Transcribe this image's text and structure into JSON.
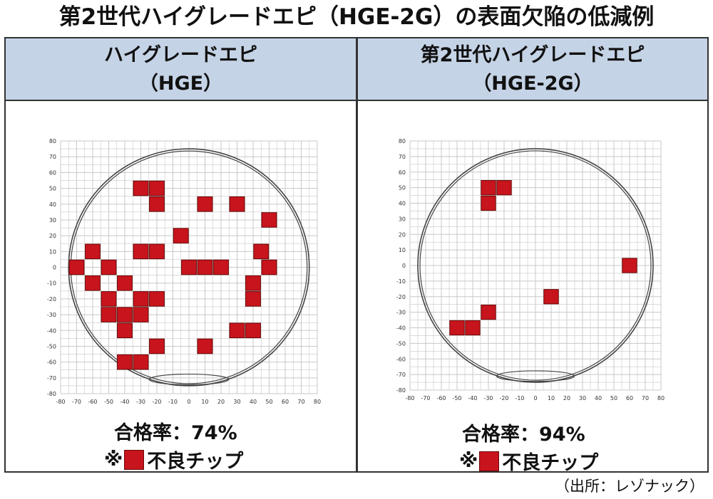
{
  "title": "第2世代ハイグレードエピ（HGE-2G）の表面欠陥の低減例",
  "panels": [
    {
      "title_line1": "ハイグレードエピ",
      "title_line2": "（HGE）",
      "yield_text": "合格率：74%",
      "legend_prefix": "※",
      "legend_label": "不良チップ"
    },
    {
      "title_line1": "第2世代ハイグレードエピ",
      "title_line2": "（HGE-2G）",
      "yield_text": "合格率：94%",
      "legend_prefix": "※",
      "legend_label": "不良チップ"
    }
  ],
  "source": "（出所：レゾナック）",
  "colors": {
    "defect": "#c8141c",
    "defect_border": "#6a0a0a",
    "header_bg": "#c5d3e6",
    "grid": "#c8c8c8",
    "circle": "#444444"
  },
  "chart_data": [
    {
      "type": "wafer-map",
      "xlim": [
        -80,
        80
      ],
      "ylim": [
        -80,
        80
      ],
      "x_ticks": [
        -80,
        -70,
        -60,
        -50,
        -40,
        -30,
        -20,
        -10,
        0,
        10,
        20,
        30,
        40,
        50,
        60,
        70,
        80
      ],
      "y_ticks": [
        80,
        70,
        60,
        50,
        40,
        30,
        20,
        10,
        0,
        -10,
        -20,
        -30,
        -40,
        -50,
        -60,
        -70,
        -80
      ],
      "grid": true,
      "defect_cells": [
        [
          -30,
          50
        ],
        [
          -20,
          50
        ],
        [
          -20,
          40
        ],
        [
          10,
          40
        ],
        [
          30,
          40
        ],
        [
          50,
          30
        ],
        [
          -5,
          20
        ],
        [
          -60,
          10
        ],
        [
          -30,
          10
        ],
        [
          -20,
          10
        ],
        [
          45,
          10
        ],
        [
          -70,
          0
        ],
        [
          -50,
          0
        ],
        [
          0,
          0
        ],
        [
          10,
          0
        ],
        [
          20,
          0
        ],
        [
          50,
          0
        ],
        [
          -60,
          -10
        ],
        [
          -40,
          -10
        ],
        [
          40,
          -10
        ],
        [
          -50,
          -20
        ],
        [
          -30,
          -20
        ],
        [
          -20,
          -20
        ],
        [
          40,
          -20
        ],
        [
          -50,
          -30
        ],
        [
          -40,
          -30
        ],
        [
          -30,
          -30
        ],
        [
          -40,
          -40
        ],
        [
          30,
          -40
        ],
        [
          40,
          -40
        ],
        [
          -20,
          -50
        ],
        [
          10,
          -50
        ],
        [
          -40,
          -60
        ],
        [
          -30,
          -60
        ]
      ]
    },
    {
      "type": "wafer-map",
      "xlim": [
        -80,
        80
      ],
      "ylim": [
        -80,
        80
      ],
      "x_ticks": [
        -80,
        -70,
        -60,
        -50,
        -40,
        -30,
        -20,
        -10,
        0,
        10,
        20,
        30,
        40,
        50,
        60,
        70,
        80
      ],
      "y_ticks": [
        80,
        70,
        60,
        50,
        40,
        30,
        20,
        10,
        0,
        -10,
        -20,
        -30,
        -40,
        -50,
        -60,
        -70,
        -80
      ],
      "grid": true,
      "defect_cells": [
        [
          -30,
          50
        ],
        [
          -20,
          50
        ],
        [
          -30,
          40
        ],
        [
          60,
          0
        ],
        [
          10,
          -20
        ],
        [
          -30,
          -30
        ],
        [
          -50,
          -40
        ],
        [
          -40,
          -40
        ]
      ]
    }
  ]
}
